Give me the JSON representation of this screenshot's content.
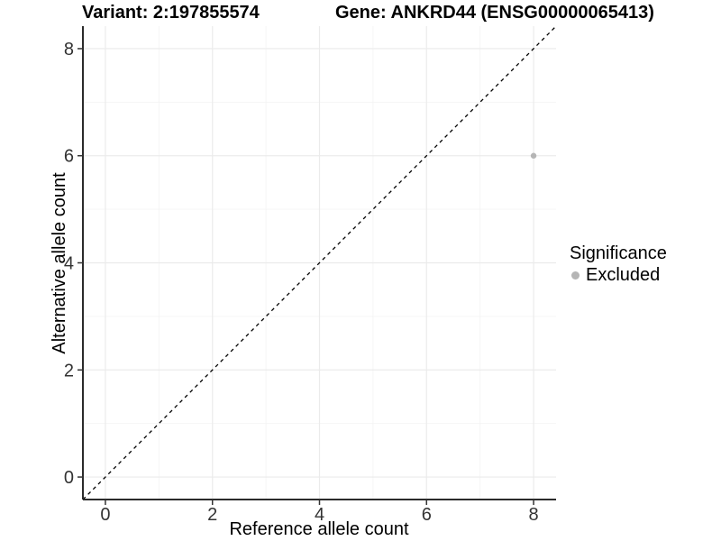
{
  "titles": {
    "variant": "Variant: 2:197855574",
    "gene": "Gene: ANKRD44 (ENSG00000065413)"
  },
  "chart_data": {
    "type": "scatter",
    "xlabel": "Reference allele count",
    "ylabel": "Alternative allele count",
    "xlim": [
      -0.42,
      8.42
    ],
    "ylim": [
      -0.42,
      8.42
    ],
    "x_ticks": [
      0,
      2,
      4,
      6,
      8
    ],
    "y_ticks": [
      0,
      2,
      4,
      6,
      8
    ],
    "x_minor_gridlines": [
      1,
      3,
      5,
      7
    ],
    "y_minor_gridlines": [
      1,
      3,
      5,
      7
    ],
    "grid": "on",
    "points": [
      {
        "x": 8,
        "y": 6,
        "series": "Excluded"
      }
    ],
    "identity_line": {
      "slope": 1,
      "intercept": 0,
      "style": "dashed",
      "color": "#000000"
    },
    "legend_position": "right",
    "colors": {
      "point_excluded": "#b5b5b5",
      "grid_major": "#ebebeb",
      "grid_minor": "#f4f4f4",
      "axis_line": "#2b2b2b",
      "tick_mark": "#333333"
    }
  },
  "legend": {
    "title": "Significance",
    "items": [
      {
        "label": "Excluded",
        "color": "#b5b5b5"
      }
    ]
  }
}
